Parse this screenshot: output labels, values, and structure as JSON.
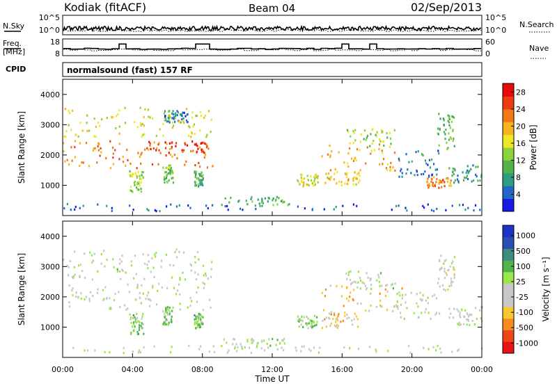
{
  "header": {
    "station": "Kodiak (fitACF)",
    "beam": "Beam 04",
    "date": "02/Sep/2013"
  },
  "top_panels": {
    "nsky_label": "N.Sky",
    "nsearch_label": "N.Search",
    "noise_ticks": [
      "10^5",
      "10^0"
    ],
    "freq_label_1": "Freq.",
    "freq_label_2": "[MHz]",
    "freq_ticks": [
      "18",
      "8"
    ],
    "nave_label": "Nave",
    "nave_ticks": [
      "60",
      "0"
    ],
    "cpid_label": "CPID",
    "cpid_text": "normalsound (fast) 157 RF"
  },
  "chart_data": [
    {
      "type": "heatmap",
      "title": "",
      "xlabel": "Time UT",
      "ylabel": "Slant Range [km]",
      "xlim": [
        0,
        24
      ],
      "ylim": [
        0,
        4500
      ],
      "x_ticks": [
        "00:00",
        "04:00",
        "08:00",
        "12:00",
        "16:00",
        "20:00",
        "00:00"
      ],
      "y_ticks": [
        "1000",
        "2000",
        "3000",
        "4000"
      ],
      "colorbar": {
        "label": "Power [dB]",
        "ticks": [
          "4",
          "8",
          "12",
          "16",
          "20",
          "24",
          "28"
        ],
        "range": [
          0,
          30
        ],
        "colors": [
          "#1a1ae6",
          "#2166c8",
          "#2e9e82",
          "#53b24c",
          "#8cd23c",
          "#f0e628",
          "#f5b41e",
          "#f27814",
          "#ee3c12",
          "#e60a0a"
        ]
      },
      "regions": [
        {
          "t0": 0.0,
          "t1": 8.6,
          "r0": 1600,
          "r1": 2500,
          "v": 22
        },
        {
          "t0": 4.5,
          "t1": 8.4,
          "r0": 2100,
          "r1": 2500,
          "v": 26
        },
        {
          "t0": 3.8,
          "t1": 4.6,
          "r0": 800,
          "r1": 1500,
          "v": 14
        },
        {
          "t0": 5.7,
          "t1": 6.3,
          "r0": 1100,
          "r1": 1700,
          "v": 12
        },
        {
          "t0": 7.5,
          "t1": 8.0,
          "r0": 1000,
          "r1": 1500,
          "v": 10
        },
        {
          "t0": 5.8,
          "t1": 7.2,
          "r0": 3100,
          "r1": 3500,
          "v": 6
        },
        {
          "t0": 0.0,
          "t1": 8.6,
          "r0": 2600,
          "r1": 3600,
          "v": 16
        },
        {
          "t0": 9.0,
          "t1": 13.0,
          "r0": 350,
          "r1": 650,
          "v": 10
        },
        {
          "t0": 0.0,
          "t1": 24.0,
          "r0": 180,
          "r1": 420,
          "v": 4
        },
        {
          "t0": 13.4,
          "t1": 14.6,
          "r0": 1000,
          "r1": 1400,
          "v": 16
        },
        {
          "t0": 14.8,
          "t1": 17.0,
          "r0": 1000,
          "r1": 1500,
          "v": 18
        },
        {
          "t0": 14.8,
          "t1": 19.4,
          "r0": 1500,
          "r1": 2400,
          "v": 20
        },
        {
          "t0": 16.2,
          "t1": 19.0,
          "r0": 2300,
          "r1": 2900,
          "v": 14
        },
        {
          "t0": 19.0,
          "t1": 21.6,
          "r0": 1300,
          "r1": 2200,
          "v": 6
        },
        {
          "t0": 22.0,
          "t1": 24.0,
          "r0": 1100,
          "r1": 1700,
          "v": 8
        },
        {
          "t0": 20.8,
          "t1": 22.2,
          "r0": 950,
          "r1": 1300,
          "v": 22
        },
        {
          "t0": 21.4,
          "t1": 22.4,
          "r0": 2200,
          "r1": 3400,
          "v": 10
        }
      ]
    },
    {
      "type": "heatmap",
      "title": "",
      "xlabel": "Time UT",
      "ylabel": "Slant Range [km]",
      "xlim": [
        0,
        24
      ],
      "ylim": [
        0,
        4500
      ],
      "x_ticks": [
        "00:00",
        "04:00",
        "08:00",
        "12:00",
        "16:00",
        "20:00",
        "00:00"
      ],
      "y_ticks": [
        "1000",
        "2000",
        "3000",
        "4000"
      ],
      "colorbar": {
        "label": "Velocity [m s⁻¹]",
        "ticks": [
          "1000",
          "500",
          "100",
          "25",
          "-25",
          "-100",
          "-500",
          "-1000"
        ],
        "range": [
          -1200,
          1200
        ],
        "colors": [
          "#e61414",
          "#ee4616",
          "#f58c1e",
          "#f5c832",
          "#c8c8c8",
          "#c8c8c8",
          "#9be64b",
          "#50b44b",
          "#3c8c82",
          "#2850b4",
          "#1e32c8"
        ]
      },
      "regions": [
        {
          "t0": 0.0,
          "t1": 8.6,
          "r0": 1600,
          "r1": 2500,
          "v": 0
        },
        {
          "t0": 3.8,
          "t1": 4.6,
          "r0": 800,
          "r1": 1500,
          "v": 300
        },
        {
          "t0": 5.7,
          "t1": 6.3,
          "r0": 1100,
          "r1": 1700,
          "v": 250
        },
        {
          "t0": 7.5,
          "t1": 8.0,
          "r0": 1000,
          "r1": 1500,
          "v": 300
        },
        {
          "t0": 0.0,
          "t1": 8.6,
          "r0": 2600,
          "r1": 3600,
          "v": 50
        },
        {
          "t0": 9.0,
          "t1": 13.0,
          "r0": 350,
          "r1": 650,
          "v": 80
        },
        {
          "t0": 0.0,
          "t1": 24.0,
          "r0": 180,
          "r1": 420,
          "v": -60
        },
        {
          "t0": 13.4,
          "t1": 14.6,
          "r0": 1000,
          "r1": 1400,
          "v": 200
        },
        {
          "t0": 14.8,
          "t1": 17.0,
          "r0": 1000,
          "r1": 1500,
          "v": -350
        },
        {
          "t0": 14.8,
          "t1": 19.4,
          "r0": 1500,
          "r1": 2400,
          "v": -450
        },
        {
          "t0": 16.2,
          "t1": 19.0,
          "r0": 2300,
          "r1": 2900,
          "v": 60
        },
        {
          "t0": 19.0,
          "t1": 21.6,
          "r0": 1300,
          "r1": 2200,
          "v": 0
        },
        {
          "t0": 22.0,
          "t1": 24.0,
          "r0": 1100,
          "r1": 1700,
          "v": 0
        },
        {
          "t0": 21.4,
          "t1": 22.4,
          "r0": 2200,
          "r1": 3400,
          "v": -80
        }
      ]
    }
  ]
}
